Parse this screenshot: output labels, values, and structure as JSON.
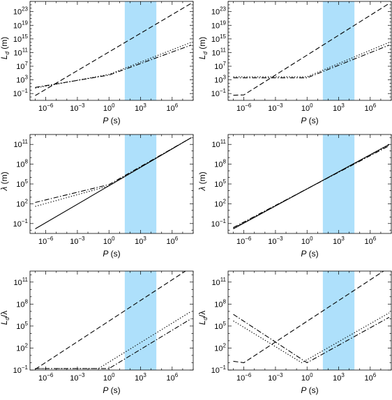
{
  "colors": {
    "band": "#aee0fb",
    "line": "#000000",
    "background": "#ffffff"
  },
  "chart_data": [
    {
      "type": "line",
      "panel": "top-left",
      "log_x": true,
      "log_y": true,
      "xlabel": "P (s)",
      "ylabel": "L_d (m)",
      "xlim_log": [
        -7.5,
        8.0
      ],
      "ylim_log": [
        -3.0,
        26.0
      ],
      "x_ticks_log": [
        -6,
        -3,
        0,
        3,
        6
      ],
      "y_ticks_log": [
        -1,
        3,
        7,
        11,
        15,
        19,
        23
      ],
      "band_x_log": [
        1.5,
        4.5
      ],
      "series": [
        {
          "style": "dashed",
          "x_log": [
            -7.0,
            7.8
          ],
          "y_log": [
            -1.6,
            25.4
          ]
        },
        {
          "style": "dotted",
          "x_log": [
            -7.0,
            0.0,
            7.8
          ],
          "y_log": [
            0.6,
            4.6,
            14.0
          ]
        },
        {
          "style": "dashdot",
          "x_log": [
            -7.0,
            0.0,
            7.8
          ],
          "y_log": [
            0.8,
            4.4,
            13.2
          ]
        }
      ]
    },
    {
      "type": "line",
      "panel": "top-right",
      "log_x": true,
      "log_y": true,
      "xlabel": "P (s)",
      "ylabel": "L_d (m)",
      "xlim_log": [
        -7.5,
        8.0
      ],
      "ylim_log": [
        -3.0,
        26.0
      ],
      "x_ticks_log": [
        -6,
        -3,
        0,
        3,
        6
      ],
      "y_ticks_log": [
        -1,
        3,
        7,
        11,
        15,
        19,
        23
      ],
      "band_x_log": [
        1.5,
        4.5
      ],
      "series": [
        {
          "style": "dashed",
          "x_log": [
            -7.0,
            -6.0,
            7.8
          ],
          "y_log": [
            -1.5,
            -1.4,
            25.4
          ]
        },
        {
          "style": "dotted",
          "x_log": [
            -7.0,
            0.0,
            7.8
          ],
          "y_log": [
            3.9,
            3.9,
            14.0
          ]
        },
        {
          "style": "dashdot",
          "x_log": [
            -7.0,
            0.0,
            7.8
          ],
          "y_log": [
            3.6,
            3.6,
            13.2
          ]
        }
      ]
    },
    {
      "type": "line",
      "panel": "middle-left",
      "log_x": true,
      "log_y": true,
      "xlabel": "P (s)",
      "ylabel": "λ (m)",
      "xlim_log": [
        -7.5,
        8.0
      ],
      "ylim_log": [
        -2.5,
        12.5
      ],
      "x_ticks_log": [
        -6,
        -3,
        0,
        3,
        6
      ],
      "y_ticks_log": [
        -1,
        2,
        5,
        8,
        11
      ],
      "band_x_log": [
        1.5,
        4.5
      ],
      "series": [
        {
          "style": "solid",
          "x_log": [
            -7.0,
            7.8
          ],
          "y_log": [
            -1.8,
            12.0
          ]
        },
        {
          "style": "dotted",
          "x_log": [
            -7.0,
            0.0,
            7.8
          ],
          "y_log": [
            1.6,
            4.7,
            12.0
          ]
        },
        {
          "style": "dashdot",
          "x_log": [
            -7.0,
            0.0,
            7.8
          ],
          "y_log": [
            2.2,
            4.9,
            12.0
          ]
        }
      ]
    },
    {
      "type": "line",
      "panel": "middle-right",
      "log_x": true,
      "log_y": true,
      "xlabel": "P (s)",
      "ylabel": "λ (m)",
      "xlim_log": [
        -7.5,
        8.0
      ],
      "ylim_log": [
        -2.5,
        12.5
      ],
      "x_ticks_log": [
        -6,
        -3,
        0,
        3,
        6
      ],
      "y_ticks_log": [
        -1,
        2,
        5,
        8,
        11
      ],
      "band_x_log": [
        1.5,
        4.5
      ],
      "series": [
        {
          "style": "solid",
          "x_log": [
            -7.0,
            7.8
          ],
          "y_log": [
            -1.8,
            11.0
          ]
        },
        {
          "style": "dotted",
          "x_log": [
            -7.0,
            7.8
          ],
          "y_log": [
            -1.7,
            10.9
          ]
        },
        {
          "style": "dashdot",
          "x_log": [
            -7.0,
            7.8
          ],
          "y_log": [
            -1.6,
            10.8
          ]
        }
      ]
    },
    {
      "type": "line",
      "panel": "bottom-left",
      "log_x": true,
      "log_y": true,
      "xlabel": "P (s)",
      "ylabel": "L_d/λ",
      "xlim_log": [
        -7.5,
        8.0
      ],
      "ylim_log": [
        -1.0,
        12.5
      ],
      "x_ticks_log": [
        -6,
        -3,
        0,
        3,
        6
      ],
      "y_ticks_log": [
        -1,
        2,
        5,
        8,
        11
      ],
      "band_x_log": [
        1.5,
        4.5
      ],
      "series": [
        {
          "style": "dashed",
          "x_log": [
            -7.0,
            7.8
          ],
          "y_log": [
            -0.9,
            13.0
          ]
        },
        {
          "style": "dotted",
          "x_log": [
            -7.0,
            -1.0,
            7.8
          ],
          "y_log": [
            -0.8,
            -0.8,
            7.0
          ]
        },
        {
          "style": "dashdot",
          "x_log": [
            -7.0,
            0.0,
            7.8
          ],
          "y_log": [
            -0.8,
            -0.8,
            6.0
          ]
        }
      ]
    },
    {
      "type": "line",
      "panel": "bottom-right",
      "log_x": true,
      "log_y": true,
      "xlabel": "P (s)",
      "ylabel": "L_d/λ",
      "xlim_log": [
        -7.5,
        8.0
      ],
      "ylim_log": [
        -1.0,
        12.5
      ],
      "x_ticks_log": [
        -6,
        -3,
        0,
        3,
        6
      ],
      "y_ticks_log": [
        -1,
        2,
        5,
        8,
        11
      ],
      "band_x_log": [
        1.5,
        4.5
      ],
      "series": [
        {
          "style": "dashed",
          "x_log": [
            -7.0,
            -6.0,
            7.8
          ],
          "y_log": [
            0.2,
            0.0,
            13.0
          ]
        },
        {
          "style": "dotted",
          "x_log": [
            -7.0,
            -0.5,
            7.8
          ],
          "y_log": [
            5.7,
            0.0,
            6.8
          ]
        },
        {
          "style": "dashdot",
          "x_log": [
            -7.0,
            0.0,
            7.8
          ],
          "y_log": [
            6.6,
            0.0,
            6.2
          ]
        }
      ]
    }
  ]
}
